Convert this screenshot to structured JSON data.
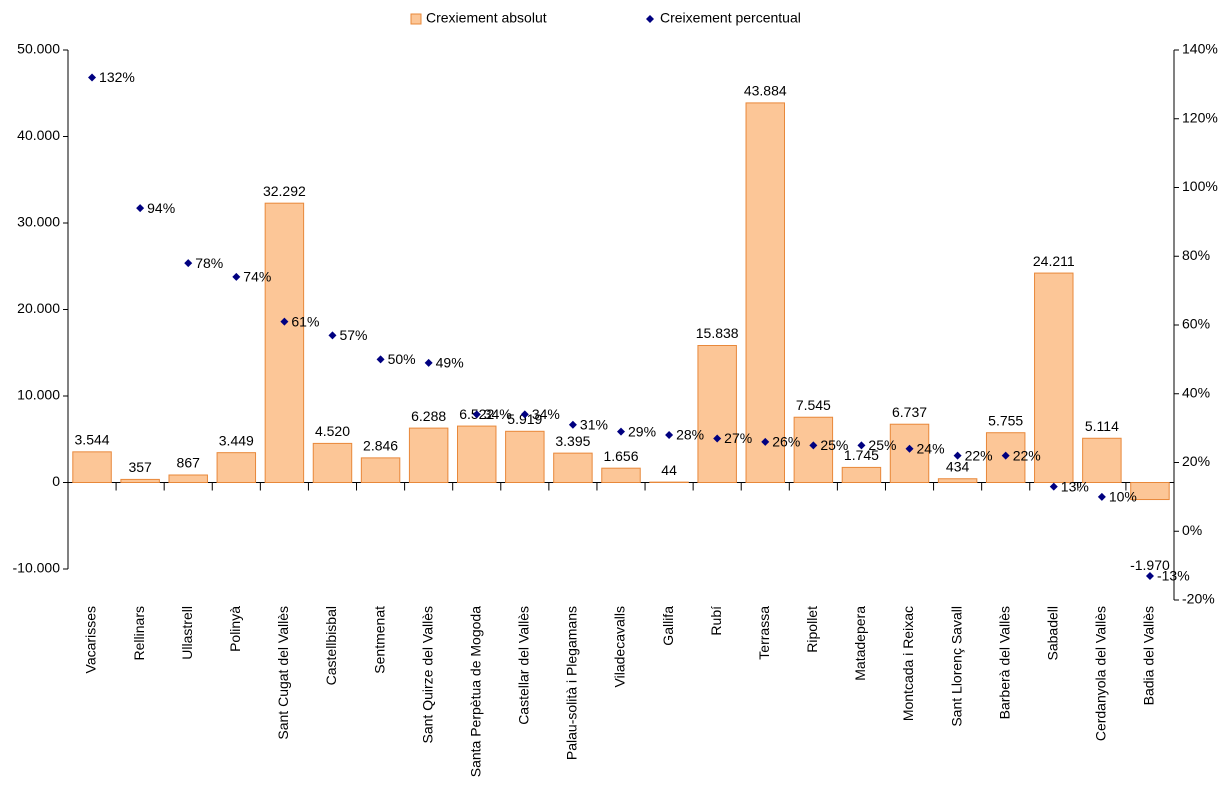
{
  "chart_data": {
    "type": "bar",
    "categories": [
      "Vacarisses",
      "Rellinars",
      "Ullastrell",
      "Polinyà",
      "Sant Cugat del Vallès",
      "Castellbisbal",
      "Sentmenat",
      "Sant Quirze del Vallès",
      "Santa Perpètua de Mogoda",
      "Castellar del Vallès",
      "Palau-solità i Plegamans",
      "Viladecavalls",
      "Gallifa",
      "Rubí",
      "Terrassa",
      "Ripollet",
      "Matadepera",
      "Montcada i Reixac",
      "Sant Llorenç Savall",
      "Barberà del Vallès",
      "Sabadell",
      "Cerdanyola del Vallès",
      "Badia del Vallès"
    ],
    "series": [
      {
        "name": "Crexiement absolut",
        "color": "#fcc697",
        "values": [
          3544,
          357,
          867,
          3449,
          32292,
          4520,
          2846,
          6288,
          6522,
          5919,
          3395,
          1656,
          44,
          15838,
          43884,
          7545,
          1745,
          6737,
          434,
          5755,
          24211,
          5114,
          -1970
        ],
        "value_labels": [
          "3.544",
          "357",
          "867",
          "3.449",
          "32.292",
          "4.520",
          "2.846",
          "6.288",
          "6.522",
          "5.919",
          "3.395",
          "1.656",
          "44",
          "15.838",
          "43.884",
          "7.545",
          "1.745",
          "6.737",
          "434",
          "5.755",
          "24.211",
          "5.114",
          "-1.970"
        ]
      },
      {
        "name": "Creixement percentual",
        "type": "scatter",
        "axis": "y2",
        "color": "#000080",
        "values": [
          132,
          94,
          78,
          74,
          61,
          57,
          50,
          49,
          34,
          34,
          31,
          29,
          28,
          27,
          26,
          25,
          25,
          24,
          22,
          22,
          13,
          10,
          -13
        ],
        "value_labels": [
          "132%",
          "94%",
          "78%",
          "74%",
          "61%",
          "57%",
          "50%",
          "49%",
          "34%",
          "34%",
          "31%",
          "29%",
          "28%",
          "27%",
          "26%",
          "25%",
          "25%",
          "24%",
          "22%",
          "22%",
          "13%",
          "10%",
          "-13%"
        ]
      }
    ],
    "ylim": [
      -10000,
      50000
    ],
    "yticks": [
      {
        "value": -10000,
        "label": "-10.000"
      },
      0,
      {
        "value": 10000,
        "label": "10.000"
      },
      {
        "value": 20000,
        "label": "20.000"
      },
      {
        "value": 30000,
        "label": "30.000"
      },
      {
        "value": 40000,
        "label": "40.000"
      },
      {
        "value": 50000,
        "label": "50.000"
      }
    ],
    "y2lim": [
      -20,
      140
    ],
    "y2ticks": [
      {
        "value": -20,
        "label": "-20%"
      },
      {
        "value": 0,
        "label": "0%"
      },
      {
        "value": 20,
        "label": "20%"
      },
      {
        "value": 40,
        "label": "40%"
      },
      {
        "value": 60,
        "label": "60%"
      },
      {
        "value": 80,
        "label": "80%"
      },
      {
        "value": 100,
        "label": "100%"
      },
      {
        "value": 120,
        "label": "120%"
      },
      {
        "value": 140,
        "label": "140%"
      }
    ],
    "grid": false,
    "legend": "top"
  }
}
